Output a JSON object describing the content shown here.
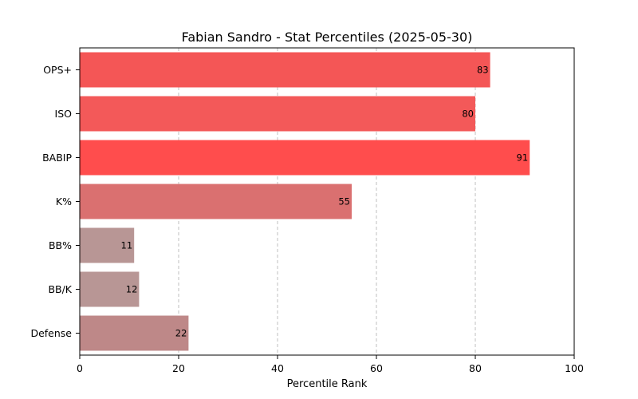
{
  "chart_data": {
    "type": "bar",
    "orientation": "horizontal",
    "title": "Fabian Sandro - Stat Percentiles (2025-05-30)",
    "xlabel": "Percentile Rank",
    "ylabel": "",
    "xlim": [
      0,
      100
    ],
    "xticks": [
      "0",
      "20",
      "40",
      "60",
      "80",
      "100"
    ],
    "grid": "x-dashed",
    "categories": [
      "OPS+",
      "ISO",
      "BABIP",
      "K%",
      "BB%",
      "BB/K",
      "Defense"
    ],
    "values": [
      83,
      80,
      91,
      55,
      11,
      12,
      22
    ],
    "value_labels": [
      "83",
      "80",
      "91",
      "55",
      "11",
      "12",
      "22"
    ],
    "colors": [
      "#f45656",
      "#f35959",
      "#ff4d4d",
      "#da7070",
      "#b89695",
      "#b89695",
      "#be8888"
    ]
  }
}
